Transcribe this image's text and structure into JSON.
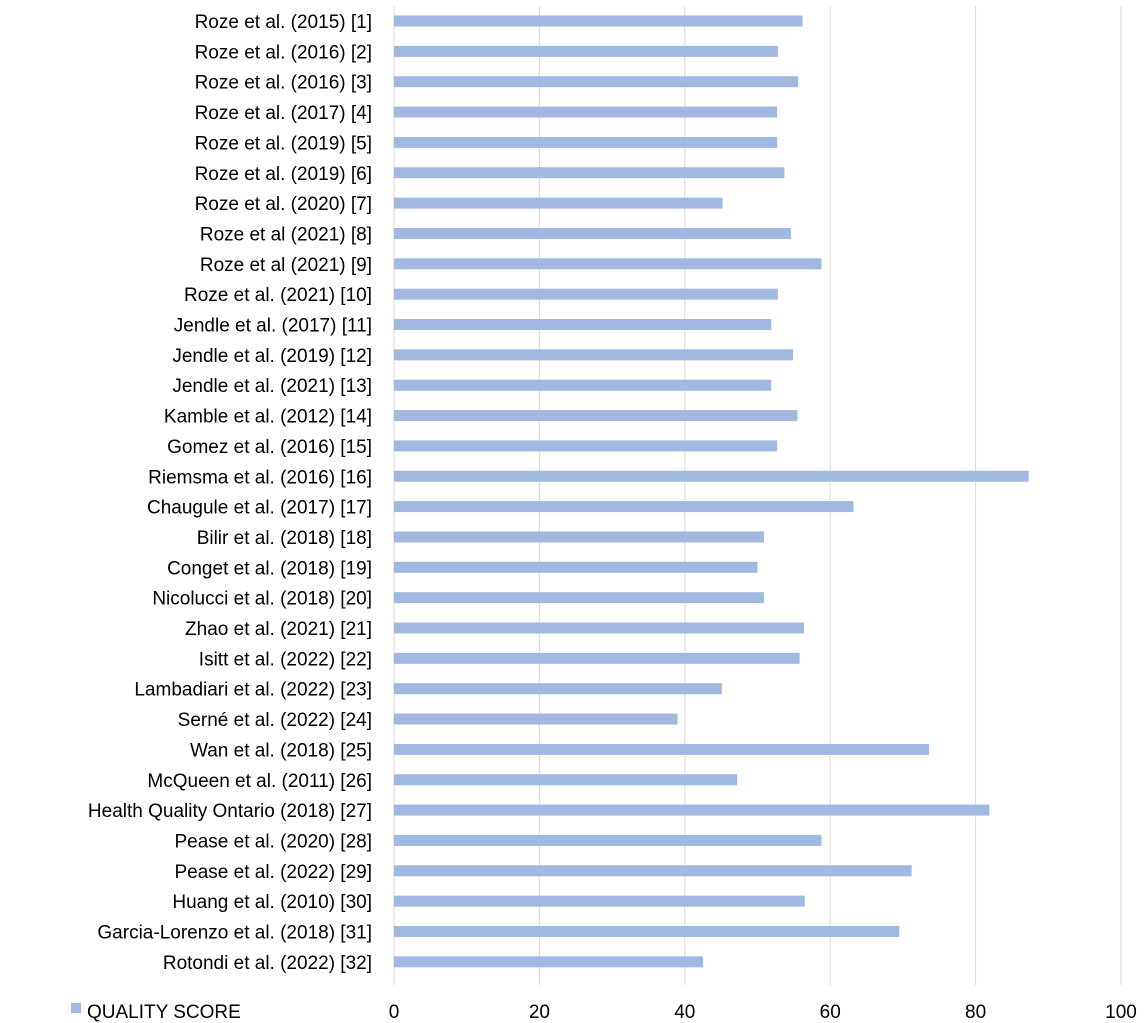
{
  "chart_data": {
    "type": "bar",
    "orientation": "horizontal",
    "categories": [
      "Roze et al. (2015) [1]",
      "Roze et al. (2016) [2]",
      "Roze et al. (2016) [3]",
      "Roze et al. (2017) [4]",
      "Roze et al. (2019) [5]",
      "Roze et al. (2019) [6]",
      "Roze et al. (2020) [7]",
      "Roze et al (2021) [8]",
      "Roze et al (2021) [9]",
      "Roze et al. (2021) [10]",
      "Jendle et al. (2017) [11]",
      "Jendle et al. (2019) [12]",
      "Jendle et al. (2021) [13]",
      "Kamble et al. (2012) [14]",
      "Gomez et al. (2016) [15]",
      "Riemsma et al. (2016) [16]",
      "Chaugule et al. (2017) [17]",
      "Bilir et al. (2018) [18]",
      "Conget et al. (2018) [19]",
      "Nicolucci et al. (2018) [20]",
      "Zhao et al. (2021) [21]",
      "Isitt et al. (2022)  [22]",
      "Lambadiari et al. (2022) [23]",
      "Serné et al. (2022) [24]",
      "Wan et al. (2018) [25]",
      "McQueen et al. (2011) [26]",
      "Health Quality Ontario (2018) [27]",
      "Pease et al. (2020) [28]",
      "Pease et al. (2022) [29]",
      "Huang et al. (2010) [30]",
      "Garcia-Lorenzo et al. (2018) [31]",
      "Rotondi et al. (2022) [32]"
    ],
    "series": [
      {
        "name": "QUALITY SCORE",
        "color": "#A1B8E0",
        "values": [
          56.2,
          52.8,
          55.6,
          52.7,
          52.7,
          53.7,
          45.2,
          54.6,
          58.8,
          52.8,
          51.9,
          54.9,
          51.9,
          55.5,
          52.7,
          87.3,
          63.2,
          50.9,
          50.0,
          50.9,
          56.4,
          55.8,
          45.1,
          39.0,
          73.6,
          47.2,
          81.9,
          58.8,
          71.2,
          56.5,
          69.5,
          42.5
        ]
      }
    ],
    "xlim": [
      0,
      100
    ],
    "xticks": [
      0,
      20,
      40,
      60,
      80,
      100
    ],
    "grid": true,
    "legend": "bottom-left",
    "title": "",
    "xlabel": "",
    "ylabel": ""
  }
}
